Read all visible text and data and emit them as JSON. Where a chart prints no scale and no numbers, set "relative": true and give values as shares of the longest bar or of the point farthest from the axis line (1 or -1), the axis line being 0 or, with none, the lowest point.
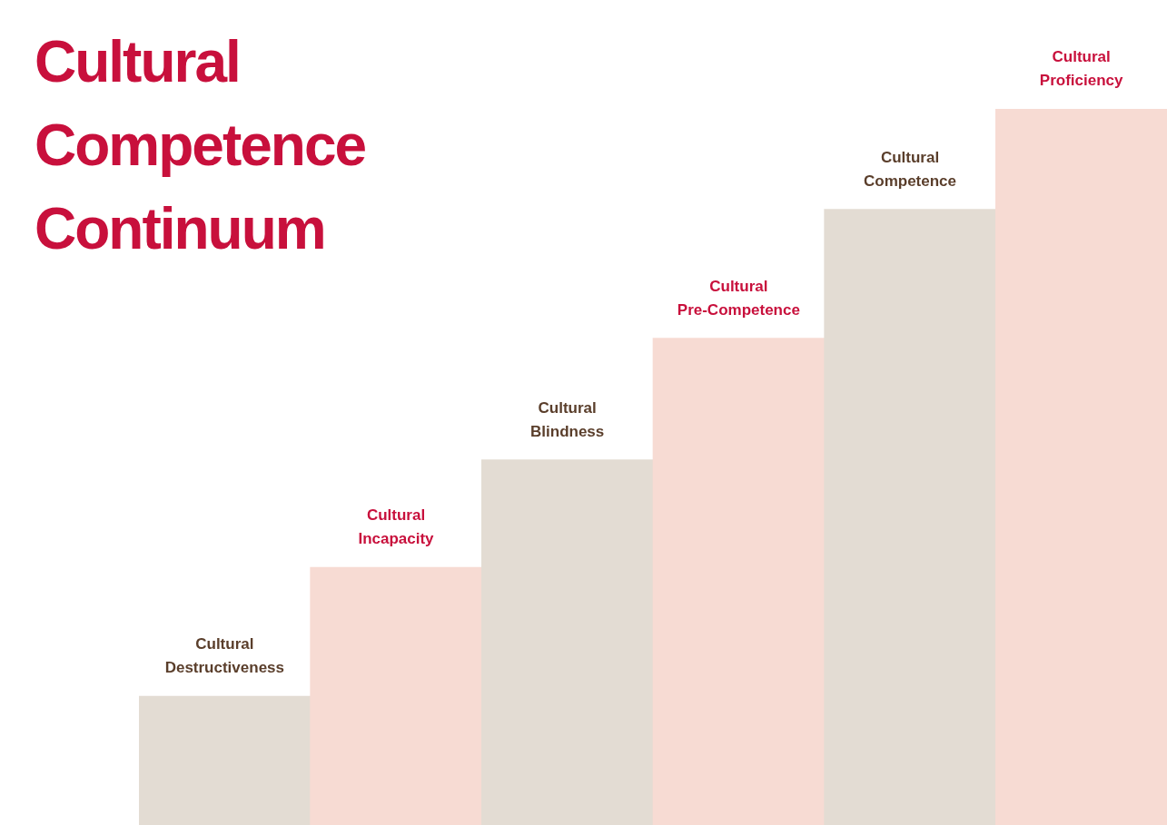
{
  "chart_data": {
    "type": "bar",
    "title": "Cultural Competence Continuum",
    "categories": [
      "Cultural Destructiveness",
      "Cultural Incapacity",
      "Cultural Blindness",
      "Cultural Pre-Competence",
      "Cultural Competence",
      "Cultural Proficiency"
    ],
    "values": [
      0.18,
      0.36,
      0.51,
      0.68,
      0.86,
      1
    ],
    "colors": [
      "#e3dcd3",
      "#f7dbd3",
      "#e3dcd3",
      "#f7dbd3",
      "#e3dcd3",
      "#f7dbd3"
    ],
    "relative": true,
    "legend": false
  }
}
